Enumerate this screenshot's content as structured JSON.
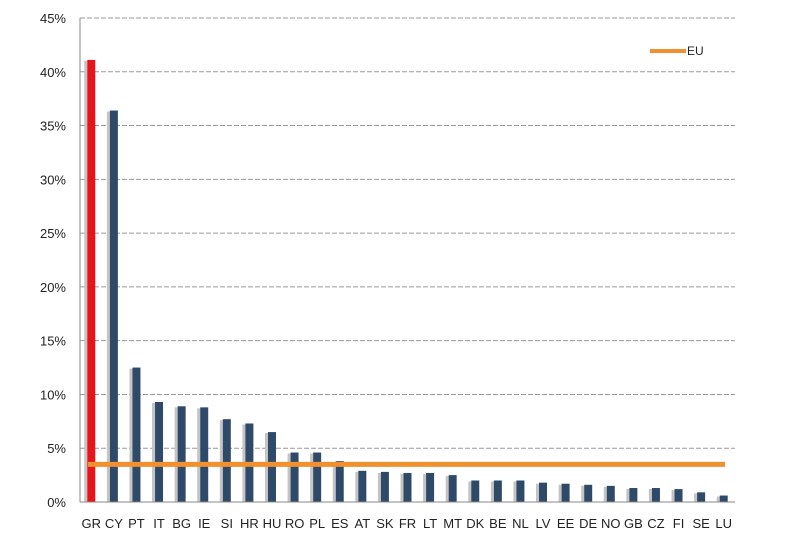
{
  "chart_data": {
    "type": "bar",
    "categories": [
      "GR",
      "CY",
      "PT",
      "IT",
      "BG",
      "IE",
      "SI",
      "HR",
      "HU",
      "RO",
      "PL",
      "ES",
      "AT",
      "SK",
      "FR",
      "LT",
      "MT",
      "DK",
      "BE",
      "NL",
      "LV",
      "EE",
      "DE",
      "NO",
      "GB",
      "CZ",
      "FI",
      "SE",
      "LU"
    ],
    "values": [
      41.1,
      36.4,
      12.5,
      9.3,
      8.9,
      8.8,
      7.7,
      7.3,
      6.5,
      4.6,
      4.6,
      3.8,
      2.9,
      2.8,
      2.7,
      2.7,
      2.5,
      2.0,
      2.0,
      2.0,
      1.8,
      1.7,
      1.6,
      1.5,
      1.3,
      1.3,
      1.2,
      0.9,
      0.6
    ],
    "highlight": {
      "category": "GR",
      "color": "#e8141c"
    },
    "bar_color": "#2e4a68",
    "reference_line": {
      "name": "EU",
      "value": 3.5,
      "color": "#f0902e"
    },
    "y_ticks": [
      "0%",
      "5%",
      "10%",
      "15%",
      "20%",
      "25%",
      "30%",
      "35%",
      "40%",
      "45%"
    ],
    "ylim": [
      0,
      45
    ],
    "y_step": 5,
    "grid": true,
    "legend_position": "top-right",
    "legend": [
      {
        "name": "EU",
        "color": "#f0902e"
      }
    ],
    "title": "",
    "xlabel": "",
    "ylabel": ""
  }
}
